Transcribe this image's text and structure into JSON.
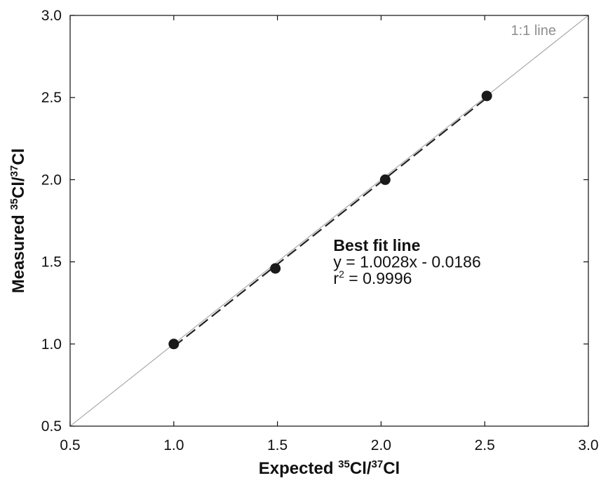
{
  "chart_data": {
    "type": "scatter",
    "xlabel": {
      "prefix": "Expected ",
      "sup1": "35",
      "mid": "Cl/",
      "sup2": "37",
      "suffix": "Cl"
    },
    "ylabel": {
      "prefix": "Measured ",
      "sup1": "35",
      "mid": "Cl/",
      "sup2": "37",
      "suffix": "Cl"
    },
    "xlim": [
      0.5,
      3.0
    ],
    "ylim": [
      0.5,
      3.0
    ],
    "xticks": [
      0.5,
      1.0,
      1.5,
      2.0,
      2.5,
      3.0
    ],
    "yticks": [
      0.5,
      1.0,
      1.5,
      2.0,
      2.5,
      3.0
    ],
    "tick_format_decimals": 1,
    "grid": false,
    "points": [
      {
        "x": 1.0,
        "y": 1.0
      },
      {
        "x": 1.49,
        "y": 1.46
      },
      {
        "x": 2.02,
        "y": 2.0
      },
      {
        "x": 2.51,
        "y": 2.51
      }
    ],
    "reference_line": {
      "label": "1:1 line",
      "slope": 1,
      "intercept": 0,
      "color": "#9a9a9a"
    },
    "fit_line": {
      "slope": 1.0028,
      "intercept": -0.0186,
      "x_range": [
        1.0,
        2.51
      ],
      "style": "dashed",
      "color": "#222222"
    },
    "annotation": {
      "title": "Best fit line",
      "equation": "y = 1.0028x - 0.0186",
      "r2_prefix": "r",
      "r2_sup": "2",
      "r2_value": " = 0.9996"
    },
    "marker_color": "#1a1a1a"
  }
}
